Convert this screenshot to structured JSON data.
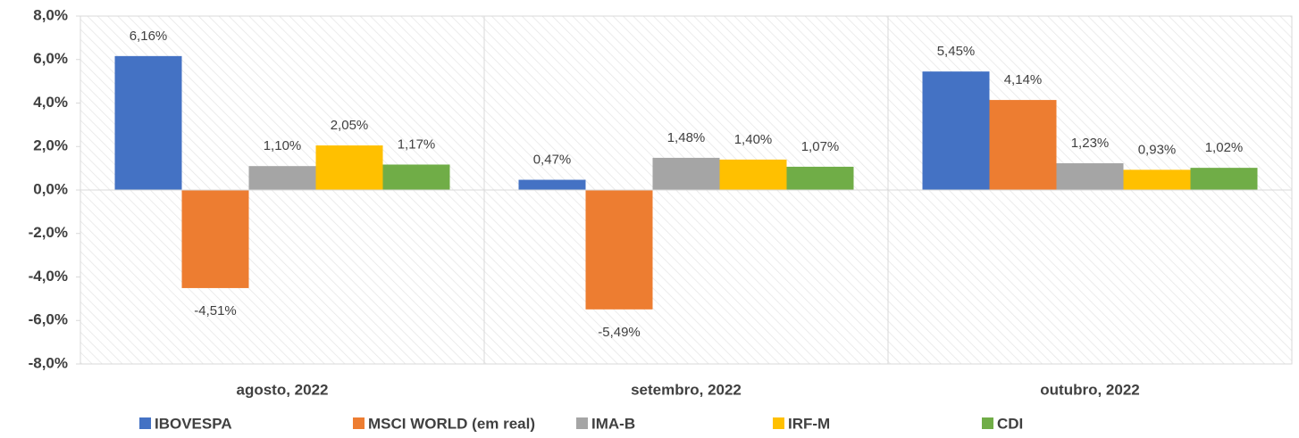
{
  "chart_data": {
    "type": "bar",
    "categories": [
      "agosto, 2022",
      "setembro, 2022",
      "outubro, 2022"
    ],
    "series": [
      {
        "name": "IBOVESPA",
        "color": "#4472c4",
        "values": [
          6.16,
          0.47,
          5.45
        ],
        "value_labels": [
          "6,16%",
          "0,47%",
          "5,45%"
        ]
      },
      {
        "name": "MSCI WORLD (em real)",
        "color": "#ed7d31",
        "values": [
          -4.51,
          -5.49,
          4.14
        ],
        "value_labels": [
          "-4,51%",
          "-5,49%",
          "4,14%"
        ]
      },
      {
        "name": "IMA-B",
        "color": "#a5a5a5",
        "values": [
          1.1,
          1.48,
          1.23
        ],
        "value_labels": [
          "1,10%",
          "1,48%",
          "1,23%"
        ]
      },
      {
        "name": "IRF-M",
        "color": "#ffc000",
        "values": [
          2.05,
          1.4,
          0.93
        ],
        "value_labels": [
          "2,05%",
          "1,40%",
          "0,93%"
        ]
      },
      {
        "name": "CDI",
        "color": "#70ad47",
        "values": [
          1.17,
          1.07,
          1.02
        ],
        "value_labels": [
          "1,17%",
          "1,07%",
          "1,02%"
        ]
      }
    ],
    "ylim": [
      -8,
      8
    ],
    "yticks": [
      {
        "value": -8,
        "label": "-8,0%"
      },
      {
        "value": -6,
        "label": "-6,0%"
      },
      {
        "value": -4,
        "label": "-4,0%"
      },
      {
        "value": -2,
        "label": "-2,0%"
      },
      {
        "value": 0,
        "label": "0,0%"
      },
      {
        "value": 2,
        "label": "2,0%"
      },
      {
        "value": 4,
        "label": "4,0%"
      },
      {
        "value": 6,
        "label": "6,0%"
      },
      {
        "value": 8,
        "label": "8,0%"
      }
    ],
    "legend": "bottom"
  }
}
